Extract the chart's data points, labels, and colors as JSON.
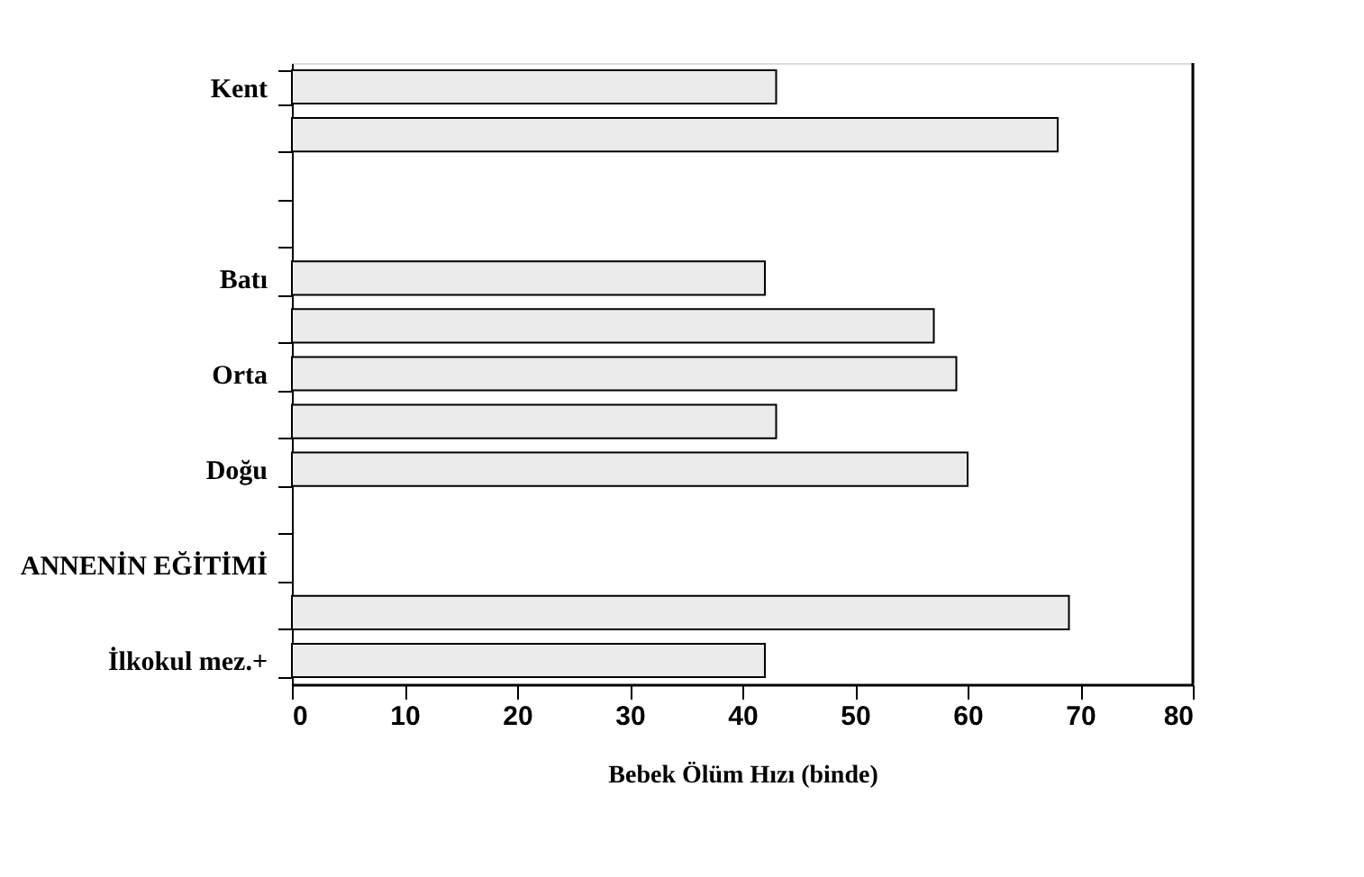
{
  "chart_data": {
    "type": "bar",
    "orientation": "horizontal",
    "xlabel": "Bebek Ölüm Hızı (binde)",
    "categories": [
      "Kent",
      null,
      null,
      null,
      "Batı",
      null,
      "Orta",
      null,
      "Doğu",
      null,
      "ANNENİN EĞİTİMİ",
      null,
      "İlkokul mez.+"
    ],
    "values": [
      43,
      68,
      null,
      null,
      42,
      57,
      59,
      43,
      60,
      null,
      null,
      69,
      42
    ],
    "color": "#ebebeb",
    "xlim": [
      0,
      80
    ],
    "xticks": [
      0,
      10,
      20,
      30,
      40,
      50,
      60,
      70,
      80
    ],
    "grid": false
  }
}
